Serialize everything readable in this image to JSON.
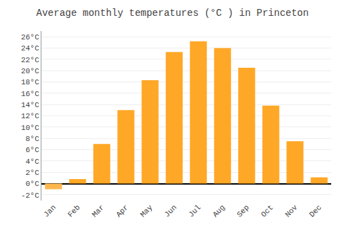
{
  "chart_data": {
    "type": "bar",
    "title": "Average monthly temperatures (°C ) in Princeton",
    "categories": [
      "Jan",
      "Feb",
      "Mar",
      "Apr",
      "May",
      "Jun",
      "Jul",
      "Aug",
      "Sep",
      "Oct",
      "Nov",
      "Dec"
    ],
    "values": [
      -1.0,
      0.8,
      7.0,
      13.0,
      18.3,
      23.3,
      25.2,
      24.0,
      20.5,
      13.8,
      7.5,
      1.1
    ],
    "colors": [
      "#FFB74D",
      "#FFA726",
      "#FFA726",
      "#FFA726",
      "#FFA726",
      "#FFA726",
      "#FFA726",
      "#FFA726",
      "#FFA726",
      "#FFA726",
      "#FFA726",
      "#FFA726"
    ],
    "ylim": [
      -3,
      27
    ],
    "yticks": [
      {
        "value": -2,
        "label": "-2°C"
      },
      {
        "value": 0,
        "label": "0°C"
      },
      {
        "value": 2,
        "label": "2°C"
      },
      {
        "value": 4,
        "label": "4°C"
      },
      {
        "value": 6,
        "label": "6°C"
      },
      {
        "value": 8,
        "label": "8°C"
      },
      {
        "value": 10,
        "label": "10°C"
      },
      {
        "value": 12,
        "label": "12°C"
      },
      {
        "value": 14,
        "label": "14°C"
      },
      {
        "value": 16,
        "label": "16°C"
      },
      {
        "value": 18,
        "label": "18°C"
      },
      {
        "value": 20,
        "label": "20°C"
      },
      {
        "value": 22,
        "label": "22°C"
      },
      {
        "value": 24,
        "label": "24°C"
      },
      {
        "value": 26,
        "label": "26°C"
      }
    ],
    "grid": true
  }
}
